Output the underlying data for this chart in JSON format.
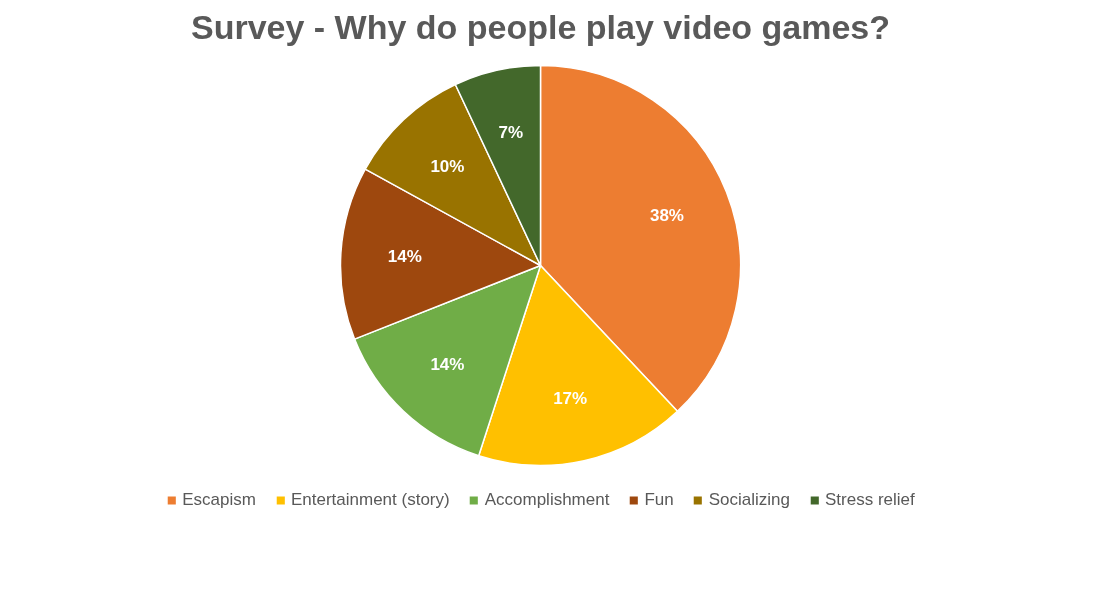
{
  "chart_data": {
    "type": "pie",
    "title": "Survey - Why do people play video games?",
    "categories": [
      "Escapism",
      "Entertainment (story)",
      "Accomplishment",
      "Fun",
      "Socializing",
      "Stress relief"
    ],
    "values": [
      38,
      17,
      14,
      14,
      10,
      7
    ],
    "colors": [
      "#ed7d31",
      "#ffc000",
      "#70ad47",
      "#9e480e",
      "#997300",
      "#43682b"
    ],
    "value_labels": [
      "38%",
      "17%",
      "14%",
      "14%",
      "10%",
      "7%"
    ],
    "legend": "bottom"
  }
}
